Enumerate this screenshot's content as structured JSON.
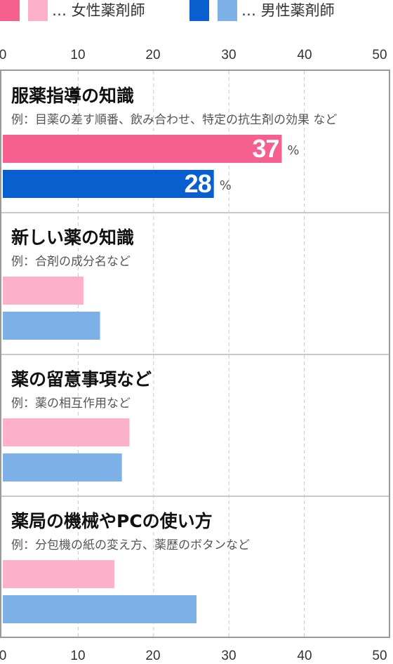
{
  "legend": {
    "female": {
      "label": "… 女性薬剤師",
      "dark": "#f5608f",
      "light": "#fdb0c9"
    },
    "male": {
      "label": "… 男性薬剤師",
      "dark": "#0a5fcf",
      "light": "#7db0e6"
    }
  },
  "axis_ticks": [
    "0",
    "10",
    "20",
    "30",
    "40",
    "50"
  ],
  "chart_data": {
    "type": "bar",
    "orientation": "horizontal",
    "xlim": [
      0,
      50
    ],
    "grid": true,
    "unit": "%",
    "series": [
      {
        "name": "女性薬剤師",
        "values": [
          37,
          10.7,
          16.8,
          14.8
        ]
      },
      {
        "name": "男性薬剤師",
        "values": [
          28,
          12.9,
          15.8,
          25.7
        ]
      }
    ],
    "categories": [
      {
        "title": "服薬指導の知識",
        "note": "例：目薬の差す順番、飲み合わせ、特定の抗生剤の効果 など",
        "labels": [
          "37",
          "28"
        ]
      },
      {
        "title": "新しい薬の知識",
        "note": "例：合剤の成分名など",
        "labels": [
          "",
          ""
        ]
      },
      {
        "title": "薬の留意事項など",
        "note": "例：薬の相互作用など",
        "labels": [
          "",
          ""
        ]
      },
      {
        "title": "薬局の機械やPCの使い方",
        "note": "例：分包機の紙の変え方、薬歴のボタンなど",
        "labels": [
          "",
          ""
        ]
      }
    ]
  }
}
